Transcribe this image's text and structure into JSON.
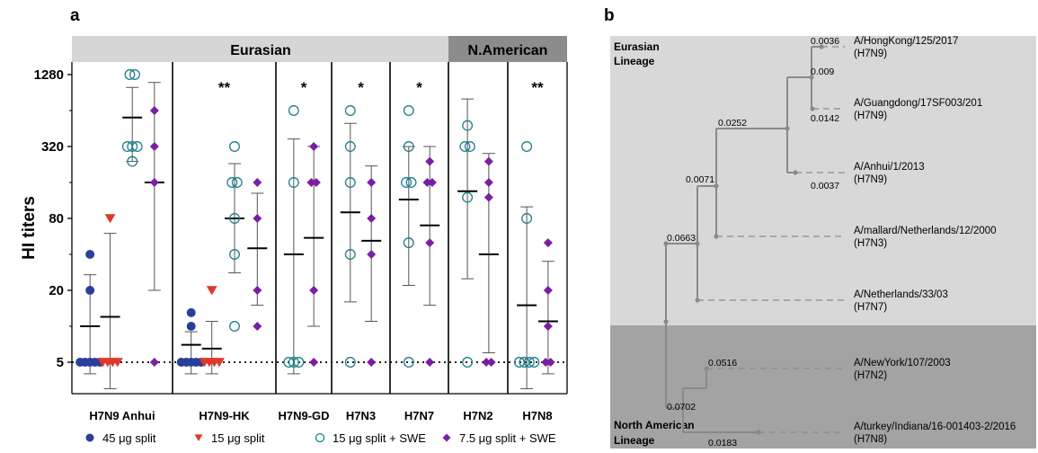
{
  "panel_a": {
    "letter": "a",
    "header_eurasian": "Eurasian",
    "header_namerican": "N.American"
  },
  "panel_b": {
    "letter": "b",
    "clade_eurasian": [
      "Eurasian",
      "Lineage"
    ],
    "clade_namerican": [
      "North American",
      "Lineage"
    ]
  },
  "colors": {
    "split45": "#2a3f9a",
    "split15": "#e0392b",
    "swe15": "#1d7f8c",
    "swe7_5": "#7b1fa2",
    "header_eurasian_bg": "#d6d6d6",
    "header_namerican_bg": "#8c8c8c",
    "tree_eurasian_bg": "#d8d8d8",
    "tree_namerican_bg": "#a3a3a3",
    "branch": "#8a8a8a"
  },
  "chart_data": [
    {
      "type": "scatter",
      "title": "",
      "xlabel": "",
      "ylabel": "HI titers",
      "y_scale": "log2",
      "ylim": [
        5,
        1280
      ],
      "y_ticks": [
        "5",
        "20",
        "80",
        "320",
        "1280"
      ],
      "reference_line": 5,
      "categories": [
        "H7N9 Anhui",
        "H7N9-HK",
        "H7N9-GD",
        "H7N3",
        "H7N7",
        "H7N2",
        "H7N8"
      ],
      "significance": [
        "",
        "**",
        "*",
        "*",
        "*",
        "",
        "**"
      ],
      "series": [
        {
          "name": "45 μg split",
          "marker": "filled-circle",
          "points": [
            [
              5,
              5,
              5,
              5,
              5,
              20,
              40
            ],
            [
              5,
              5,
              5,
              5,
              5,
              10,
              13
            ],
            [],
            [],
            [],
            [],
            []
          ],
          "mean": [
            10,
            7
          ],
          "error": [
            [
              4,
              27
            ],
            [
              4,
              9
            ]
          ]
        },
        {
          "name": "15 μg split",
          "marker": "filled-triangle",
          "points": [
            [
              5,
              5,
              5,
              5,
              80
            ],
            [
              5,
              5,
              5,
              5,
              20
            ],
            [],
            [],
            [],
            [],
            []
          ],
          "mean": [
            12,
            6.5
          ],
          "error": [
            [
              3,
              60
            ],
            [
              4,
              11
            ]
          ]
        },
        {
          "name": "15 μg split + SWE",
          "marker": "open-circle",
          "points": [
            [
              240,
              320,
              320,
              320,
              1280,
              1280
            ],
            [
              10,
              40,
              80,
              160,
              160,
              320
            ],
            [
              5,
              5,
              5,
              160,
              640
            ],
            [
              5,
              40,
              160,
              320,
              640
            ],
            [
              5,
              50,
              160,
              160,
              320,
              640
            ],
            [
              5,
              120,
              320,
              320,
              480
            ],
            [
              5,
              5,
              5,
              5,
              80,
              320
            ]
          ],
          "mean": [
            560,
            80,
            40,
            90,
            115,
            135,
            15
          ],
          "error": [
            [
              240,
              1000
            ],
            [
              28,
              230
            ],
            [
              4,
              370
            ],
            [
              16,
              500
            ],
            [
              22,
              320
            ],
            [
              25,
              800
            ],
            [
              3,
              100
            ]
          ]
        },
        {
          "name": "7.5 μg split + SWE",
          "marker": "filled-diamond",
          "points": [
            [
              5,
              160,
              320,
              640
            ],
            [
              10,
              20,
              80,
              160
            ],
            [
              5,
              20,
              160,
              160,
              320
            ],
            [
              5,
              40,
              80,
              160
            ],
            [
              5,
              50,
              160,
              160,
              240
            ],
            [
              5,
              5,
              120,
              160,
              240
            ],
            [
              5,
              5,
              10,
              20,
              50
            ]
          ],
          "mean": [
            160,
            45,
            55,
            52,
            70,
            40,
            11
          ],
          "error": [
            [
              20,
              1100
            ],
            [
              15,
              130
            ],
            [
              10,
              320
            ],
            [
              11,
              220
            ],
            [
              15,
              320
            ],
            [
              6,
              280
            ],
            [
              4,
              35
            ]
          ]
        }
      ],
      "legend_position": "bottom"
    },
    {
      "type": "tree",
      "title": "",
      "leaves": [
        [
          "A/HongKong/125/2017",
          "(H7N9)"
        ],
        [
          "A/Guangdong/17SF003/201",
          "(H7N9)"
        ],
        [
          "A/Anhui/1/2013",
          "(H7N9)"
        ],
        [
          "A/mallard/Netherlands/12/2000",
          "(H7N3)"
        ],
        [
          "A/Netherlands/33/03",
          "(H7N7)"
        ],
        [
          "A/NewYork/107/2003",
          "(H7N2)"
        ],
        [
          "A/turkey/Indiana/16-001403-2/2016",
          "(H7N8)"
        ]
      ],
      "branch_lengths": [
        "0.0036",
        "0.009",
        "0.0142",
        "0.0252",
        "0.0037",
        "0.0071",
        "0.0663",
        "0.0516",
        "0.0702",
        "0.0183"
      ]
    }
  ]
}
